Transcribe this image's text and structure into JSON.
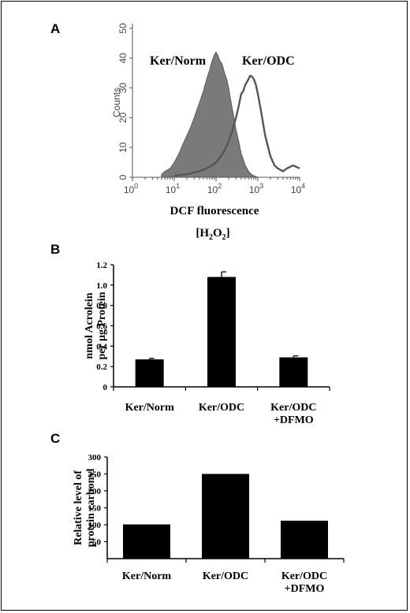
{
  "chart_data": [
    {
      "panel": "A",
      "type": "area",
      "ylabel": "Counts",
      "xlabel": "DCF fluorescence",
      "xlabel2_main": "[H",
      "xlabel2_sub1": "2",
      "xlabel2_mid": "O",
      "xlabel2_sub2": "2",
      "xlabel2_end": "]",
      "x_scale": "log",
      "xlim": [
        1,
        10000
      ],
      "ylim": [
        0,
        50
      ],
      "y_ticks": [
        "0",
        "10",
        "20",
        "30",
        "40",
        "50"
      ],
      "x_ticks": [
        {
          "base": "10",
          "exp": "0"
        },
        {
          "base": "10",
          "exp": "1"
        },
        {
          "base": "10",
          "exp": "2"
        },
        {
          "base": "10",
          "exp": "3"
        },
        {
          "base": "10",
          "exp": "4"
        }
      ],
      "series": [
        {
          "name": "Ker/Norm",
          "style": "filled",
          "color": "#7a7a7a",
          "x": [
            5,
            6,
            8,
            10,
            13,
            16,
            20,
            25,
            30,
            40,
            50,
            60,
            70,
            80,
            90,
            100,
            110,
            125,
            140,
            160,
            180,
            200,
            230,
            260,
            300,
            350,
            400,
            450,
            500,
            600,
            700,
            800,
            1000
          ],
          "y": [
            1,
            2,
            3,
            5,
            8,
            11,
            14,
            17,
            20,
            25,
            29,
            33,
            36,
            39,
            41,
            42,
            41,
            39,
            38,
            35,
            33,
            30,
            25,
            21,
            16,
            12,
            8,
            6,
            4,
            2,
            1,
            0.5,
            0
          ]
        },
        {
          "name": "Ker/ODC",
          "style": "outline",
          "color": "#555555",
          "x": [
            10,
            20,
            40,
            60,
            80,
            100,
            130,
            160,
            200,
            250,
            300,
            350,
            400,
            450,
            500,
            550,
            600,
            650,
            700,
            800,
            900,
            1000,
            1200,
            1500,
            2000,
            2500,
            3000,
            4000,
            5000,
            7000,
            10000
          ],
          "y": [
            0.5,
            1,
            2,
            3,
            4,
            5,
            7,
            9,
            12,
            16,
            20,
            24,
            28,
            29,
            31,
            32,
            33,
            34,
            34,
            33,
            31,
            28,
            22,
            14,
            7,
            4,
            3,
            2,
            3,
            4,
            3
          ]
        }
      ]
    },
    {
      "panel": "B",
      "type": "bar",
      "ylabel_line1": "nmol Acrolein",
      "ylabel_line2": "per µg Protein",
      "ylim": [
        0,
        1.2
      ],
      "y_ticks": [
        "0",
        "0.2",
        "0.4",
        "0.6",
        "0.8",
        "1.0",
        "1.2"
      ],
      "categories": [
        [
          "Ker/Norm"
        ],
        [
          "Ker/ODC"
        ],
        [
          "Ker/ODC",
          "+DFMO"
        ]
      ],
      "values": [
        0.27,
        1.08,
        0.29
      ],
      "errors": [
        0.01,
        0.05,
        0.015
      ]
    },
    {
      "panel": "C",
      "type": "bar",
      "ylabel_line1": "Relative level of",
      "ylabel_line2": "protein carbonyl",
      "ylim": [
        0,
        300
      ],
      "y_ticks": [
        "50",
        "100",
        "150",
        "200",
        "250",
        "300"
      ],
      "categories": [
        [
          "Ker/Norm"
        ],
        [
          "Ker/ODC"
        ],
        [
          "Ker/ODC",
          "+DFMO"
        ]
      ],
      "values": [
        101,
        250,
        112
      ]
    }
  ]
}
